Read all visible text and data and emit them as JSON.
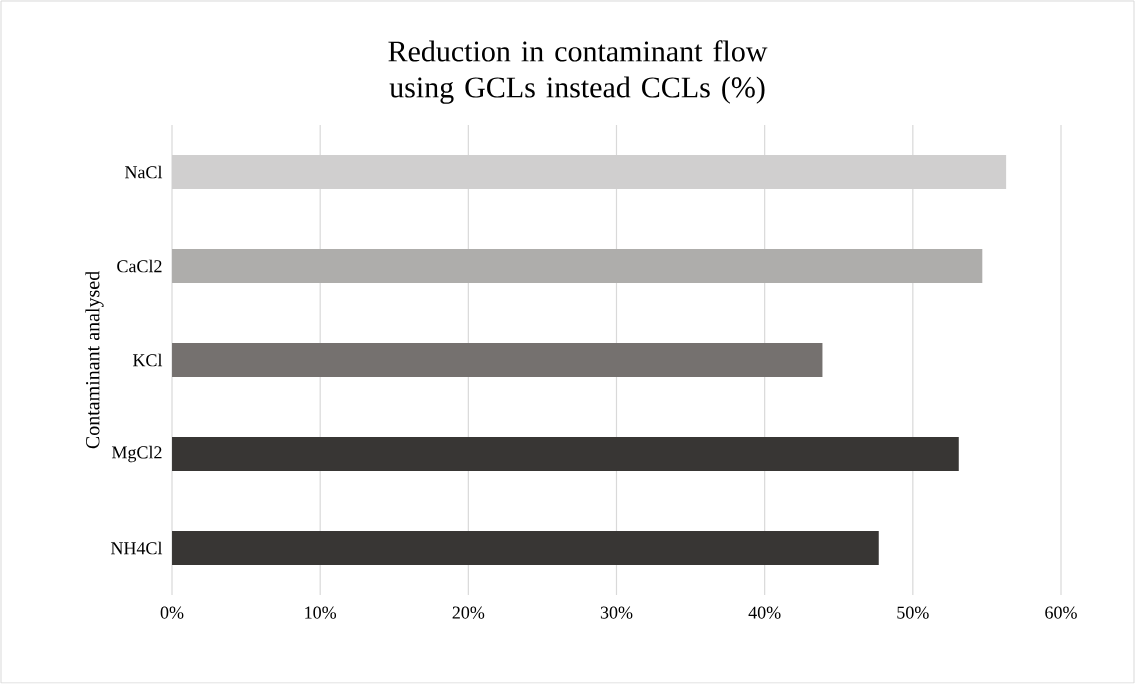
{
  "chart_data": {
    "type": "bar",
    "orientation": "horizontal",
    "title": "Reduction in contaminant flow using GCLs instead CCLs (%)",
    "ylabel": "Contaminant analysed",
    "categories": [
      "NaCl",
      "CaCl2",
      "KCl",
      "MgCl2",
      "NH4Cl"
    ],
    "values": [
      56.3,
      54.7,
      43.9,
      53.1,
      47.7
    ],
    "colors": [
      "#d0cfcf",
      "#aeadab",
      "#75716f",
      "#383634",
      "#383634"
    ],
    "xlim": [
      0,
      60
    ],
    "xticks": [
      {
        "value": 0,
        "label": "0%"
      },
      {
        "value": 10,
        "label": "10%"
      },
      {
        "value": 20,
        "label": "20%"
      },
      {
        "value": 30,
        "label": "30%"
      },
      {
        "value": 40,
        "label": "40%"
      },
      {
        "value": 50,
        "label": "50%"
      },
      {
        "value": 60,
        "label": "60%"
      }
    ],
    "grid": "x"
  }
}
